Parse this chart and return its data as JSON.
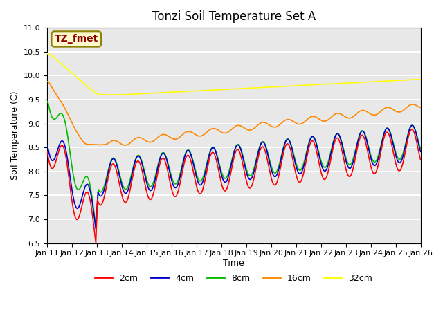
{
  "title": "Tonzi Soil Temperature Set A",
  "xlabel": "Time",
  "ylabel": "Soil Temperature (C)",
  "ylim": [
    6.5,
    11.0
  ],
  "annotation_text": "TZ_fmet",
  "annotation_color": "#8B0000",
  "annotation_bg": "#FFFACD",
  "annotation_border": "#8B8000",
  "line_colors": {
    "2cm": "#FF0000",
    "4cm": "#0000CC",
    "8cm": "#00BB00",
    "16cm": "#FF8800",
    "32cm": "#FFFF00"
  },
  "legend_labels": [
    "2cm",
    "4cm",
    "8cm",
    "16cm",
    "32cm"
  ],
  "plot_bg": "#E8E8E8",
  "fig_bg": "#FFFFFF",
  "x_tick_labels": [
    "Jan 11",
    "Jan 12",
    "Jan 13",
    "Jan 14",
    "Jan 15",
    "Jan 16",
    "Jan 17",
    "Jan 18",
    "Jan 19",
    "Jan 20",
    "Jan 21",
    "Jan 22",
    "Jan 23",
    "Jan 24",
    "Jan 25",
    "Jan 26"
  ],
  "n_days": 15
}
